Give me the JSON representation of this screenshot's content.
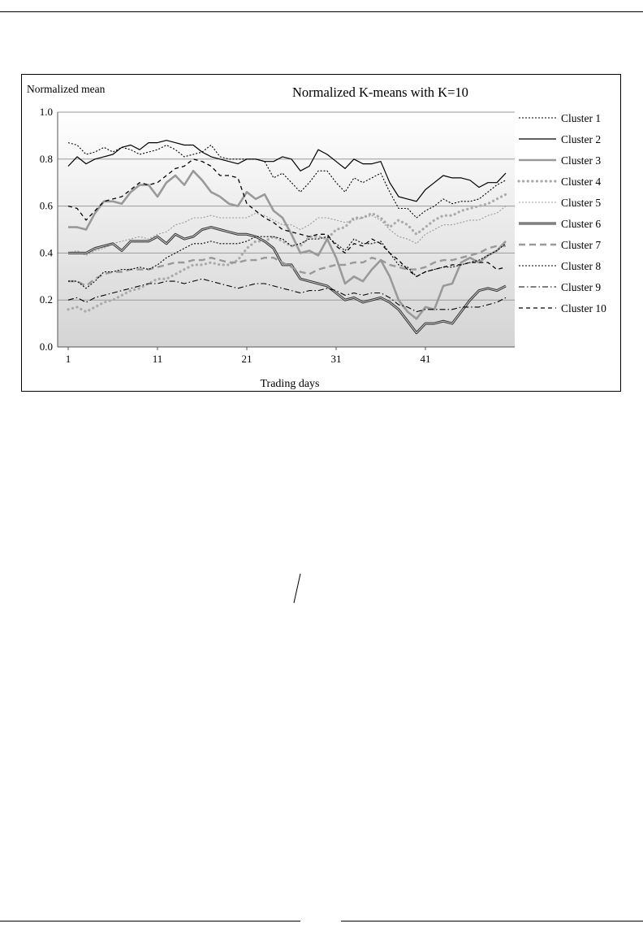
{
  "chart_data": {
    "type": "line",
    "title": "Normalized  K-means with K=10",
    "ylabel": "Normalized  mean",
    "xlabel": "Trading days",
    "ylim": [
      0,
      1
    ],
    "yticks": [
      "0.0",
      "0.2",
      "0.4",
      "0.6",
      "0.8",
      "1.0"
    ],
    "xlim": [
      1,
      50
    ],
    "xticks": [
      "1",
      "11",
      "21",
      "31",
      "41"
    ],
    "grid": "horizontal",
    "legend_position": "right",
    "x": [
      1,
      2,
      3,
      4,
      5,
      6,
      7,
      8,
      9,
      10,
      11,
      12,
      13,
      14,
      15,
      16,
      17,
      18,
      19,
      20,
      21,
      22,
      23,
      24,
      25,
      26,
      27,
      28,
      29,
      30,
      31,
      32,
      33,
      34,
      35,
      36,
      37,
      38,
      39,
      40,
      41,
      42,
      43,
      44,
      45,
      46,
      47,
      48,
      49,
      50
    ],
    "series": [
      {
        "name": "Cluster 1",
        "style": "dotted-thin",
        "color": "#000000",
        "values": [
          0.87,
          0.86,
          0.82,
          0.83,
          0.85,
          0.83,
          0.85,
          0.84,
          0.82,
          0.83,
          0.84,
          0.86,
          0.84,
          0.81,
          0.82,
          0.83,
          0.86,
          0.81,
          0.8,
          0.8,
          0.8,
          0.8,
          0.79,
          0.72,
          0.74,
          0.7,
          0.66,
          0.7,
          0.75,
          0.75,
          0.7,
          0.66,
          0.72,
          0.7,
          0.72,
          0.74,
          0.66,
          0.59,
          0.59,
          0.55,
          0.58,
          0.6,
          0.63,
          0.61,
          0.62,
          0.62,
          0.63,
          0.66,
          0.69,
          0.71
        ]
      },
      {
        "name": "Cluster 2",
        "style": "solid-thin",
        "color": "#000000",
        "values": [
          0.77,
          0.81,
          0.78,
          0.8,
          0.81,
          0.82,
          0.85,
          0.86,
          0.84,
          0.87,
          0.87,
          0.88,
          0.87,
          0.86,
          0.86,
          0.83,
          0.81,
          0.8,
          0.79,
          0.78,
          0.8,
          0.8,
          0.79,
          0.79,
          0.81,
          0.8,
          0.75,
          0.77,
          0.84,
          0.82,
          0.79,
          0.76,
          0.8,
          0.78,
          0.78,
          0.79,
          0.7,
          0.64,
          0.63,
          0.62,
          0.67,
          0.7,
          0.73,
          0.72,
          0.72,
          0.71,
          0.68,
          0.7,
          0.7,
          0.74
        ]
      },
      {
        "name": "Cluster 3",
        "style": "solid-thick",
        "color": "#999999",
        "values": [
          0.51,
          0.51,
          0.5,
          0.57,
          0.62,
          0.62,
          0.61,
          0.66,
          0.69,
          0.69,
          0.64,
          0.7,
          0.73,
          0.69,
          0.75,
          0.71,
          0.66,
          0.64,
          0.61,
          0.6,
          0.66,
          0.63,
          0.65,
          0.58,
          0.55,
          0.48,
          0.4,
          0.41,
          0.39,
          0.46,
          0.38,
          0.27,
          0.3,
          0.28,
          0.33,
          0.37,
          0.3,
          0.2,
          0.15,
          0.12,
          0.17,
          0.16,
          0.26,
          0.27,
          0.36,
          0.38,
          0.36,
          0.39,
          0.41,
          0.45
        ]
      },
      {
        "name": "Cluster 4",
        "style": "dotted-thick",
        "color": "#aaaaaa",
        "values": [
          0.16,
          0.17,
          0.15,
          0.17,
          0.19,
          0.2,
          0.22,
          0.24,
          0.25,
          0.27,
          0.29,
          0.29,
          0.31,
          0.33,
          0.35,
          0.35,
          0.36,
          0.35,
          0.35,
          0.37,
          0.42,
          0.45,
          0.45,
          0.47,
          0.45,
          0.43,
          0.43,
          0.47,
          0.47,
          0.46,
          0.5,
          0.51,
          0.55,
          0.55,
          0.57,
          0.55,
          0.51,
          0.54,
          0.52,
          0.48,
          0.51,
          0.54,
          0.56,
          0.56,
          0.58,
          0.59,
          0.6,
          0.61,
          0.63,
          0.65
        ]
      },
      {
        "name": "Cluster 5",
        "style": "dotted-thin",
        "color": "#999999",
        "values": [
          0.4,
          0.41,
          0.39,
          0.41,
          0.42,
          0.44,
          0.45,
          0.46,
          0.47,
          0.46,
          0.48,
          0.49,
          0.52,
          0.53,
          0.55,
          0.55,
          0.56,
          0.55,
          0.55,
          0.55,
          0.55,
          0.57,
          0.56,
          0.54,
          0.52,
          0.52,
          0.5,
          0.52,
          0.55,
          0.55,
          0.54,
          0.53,
          0.54,
          0.55,
          0.56,
          0.54,
          0.5,
          0.47,
          0.46,
          0.44,
          0.48,
          0.5,
          0.52,
          0.52,
          0.53,
          0.54,
          0.54,
          0.56,
          0.57,
          0.6
        ]
      },
      {
        "name": "Cluster 6",
        "style": "double-dark",
        "color": "#333333",
        "values": [
          0.4,
          0.4,
          0.4,
          0.42,
          0.43,
          0.44,
          0.41,
          0.45,
          0.45,
          0.45,
          0.47,
          0.44,
          0.48,
          0.46,
          0.47,
          0.5,
          0.51,
          0.5,
          0.49,
          0.48,
          0.48,
          0.47,
          0.45,
          0.42,
          0.35,
          0.35,
          0.29,
          0.28,
          0.27,
          0.26,
          0.23,
          0.2,
          0.21,
          0.19,
          0.2,
          0.21,
          0.19,
          0.16,
          0.11,
          0.06,
          0.1,
          0.1,
          0.11,
          0.1,
          0.15,
          0.2,
          0.24,
          0.25,
          0.24,
          0.26
        ]
      },
      {
        "name": "Cluster 7",
        "style": "dashed-thick",
        "color": "#999999",
        "values": [
          0.28,
          0.28,
          0.26,
          0.29,
          0.31,
          0.32,
          0.32,
          0.33,
          0.33,
          0.33,
          0.34,
          0.35,
          0.36,
          0.36,
          0.37,
          0.37,
          0.38,
          0.37,
          0.36,
          0.36,
          0.37,
          0.37,
          0.38,
          0.38,
          0.36,
          0.34,
          0.32,
          0.31,
          0.33,
          0.34,
          0.35,
          0.35,
          0.36,
          0.36,
          0.38,
          0.37,
          0.35,
          0.34,
          0.33,
          0.33,
          0.34,
          0.36,
          0.37,
          0.37,
          0.38,
          0.39,
          0.4,
          0.42,
          0.43,
          0.43
        ]
      },
      {
        "name": "Cluster 8",
        "style": "dotted-thin",
        "color": "#000000",
        "values": [
          0.28,
          0.28,
          0.25,
          0.28,
          0.32,
          0.32,
          0.33,
          0.33,
          0.34,
          0.33,
          0.35,
          0.38,
          0.4,
          0.42,
          0.44,
          0.44,
          0.45,
          0.44,
          0.44,
          0.44,
          0.45,
          0.47,
          0.47,
          0.47,
          0.46,
          0.43,
          0.44,
          0.46,
          0.46,
          0.47,
          0.44,
          0.41,
          0.46,
          0.44,
          0.44,
          0.45,
          0.4,
          0.35,
          0.34,
          0.3,
          0.32,
          0.33,
          0.34,
          0.34,
          0.35,
          0.36,
          0.37,
          0.39,
          0.41,
          0.44
        ]
      },
      {
        "name": "Cluster 9",
        "style": "dash-dot",
        "color": "#000000",
        "values": [
          0.2,
          0.21,
          0.19,
          0.21,
          0.22,
          0.23,
          0.24,
          0.25,
          0.26,
          0.27,
          0.27,
          0.28,
          0.28,
          0.27,
          0.28,
          0.29,
          0.28,
          0.27,
          0.26,
          0.25,
          0.26,
          0.27,
          0.27,
          0.26,
          0.25,
          0.24,
          0.23,
          0.24,
          0.24,
          0.25,
          0.24,
          0.22,
          0.23,
          0.22,
          0.23,
          0.23,
          0.21,
          0.18,
          0.17,
          0.15,
          0.16,
          0.16,
          0.16,
          0.16,
          0.17,
          0.17,
          0.17,
          0.18,
          0.19,
          0.21
        ]
      },
      {
        "name": "Cluster 10",
        "style": "dashed-thin",
        "color": "#000000",
        "values": [
          0.6,
          0.59,
          0.54,
          0.58,
          0.62,
          0.63,
          0.64,
          0.67,
          0.7,
          0.69,
          0.7,
          0.73,
          0.76,
          0.77,
          0.8,
          0.79,
          0.77,
          0.73,
          0.73,
          0.72,
          0.61,
          0.58,
          0.55,
          0.53,
          0.5,
          0.49,
          0.48,
          0.47,
          0.48,
          0.48,
          0.43,
          0.4,
          0.44,
          0.43,
          0.46,
          0.44,
          0.4,
          0.37,
          0.33,
          0.3,
          0.32,
          0.33,
          0.34,
          0.35,
          0.35,
          0.36,
          0.36,
          0.36,
          0.33,
          0.34
        ]
      }
    ]
  }
}
